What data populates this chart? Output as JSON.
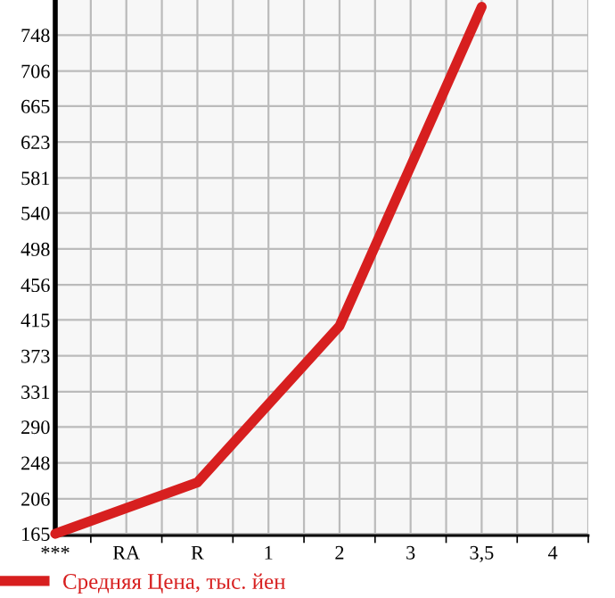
{
  "chart_data": {
    "type": "line",
    "categories": [
      "***",
      "RA",
      "R",
      "1",
      "2",
      "3",
      "3,5",
      "4"
    ],
    "series": [
      {
        "name": "Средняя Цена, тыс. йен",
        "color": "#d71f1f",
        "values": [
          165,
          null,
          225,
          null,
          408,
          null,
          781,
          null
        ]
      }
    ],
    "ylim": [
      163,
      789
    ],
    "yticks": [
      165,
      206,
      248,
      290,
      331,
      373,
      415,
      456,
      498,
      540,
      581,
      623,
      665,
      706,
      748
    ],
    "grid": true,
    "legend": "bottom",
    "marker": "none",
    "line_style": "solid"
  }
}
